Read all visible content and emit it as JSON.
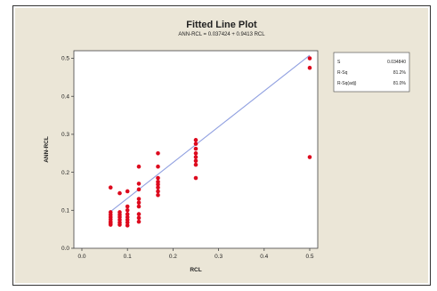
{
  "chart_data": {
    "type": "scatter",
    "title": "Fitted Line Plot",
    "subtitle": "ANN-RCL = 0.037424 + 0.9413 RCL",
    "xlabel": "RCL",
    "ylabel": "ANN-RCL",
    "xlim": [
      0.0,
      0.5
    ],
    "ylim": [
      0.0,
      0.52
    ],
    "xticks": [
      "0.0",
      "0.1",
      "0.2",
      "0.3",
      "0.4",
      "0.5"
    ],
    "yticks": [
      "0.0",
      "0.1",
      "0.2",
      "0.3",
      "0.4",
      "0.5"
    ],
    "fit": {
      "intercept": 0.037424,
      "slope": 0.9413
    },
    "grid": false,
    "legend_position": "top-right",
    "stats": [
      {
        "label": "S",
        "value": "0.034840"
      },
      {
        "label": "R-Sq",
        "value": "81.2%"
      },
      {
        "label": "R-Sq(adj)",
        "value": "81.0%"
      }
    ],
    "colors": {
      "points": "#dd0a1e",
      "fit_line": "#8f9fe0",
      "background": "#ebe6d7"
    },
    "points": [
      [
        0.063,
        0.16
      ],
      [
        0.063,
        0.095
      ],
      [
        0.063,
        0.088
      ],
      [
        0.063,
        0.082
      ],
      [
        0.063,
        0.076
      ],
      [
        0.063,
        0.07
      ],
      [
        0.063,
        0.066
      ],
      [
        0.063,
        0.062
      ],
      [
        0.083,
        0.145
      ],
      [
        0.083,
        0.095
      ],
      [
        0.083,
        0.088
      ],
      [
        0.083,
        0.082
      ],
      [
        0.083,
        0.075
      ],
      [
        0.083,
        0.068
      ],
      [
        0.083,
        0.062
      ],
      [
        0.1,
        0.15
      ],
      [
        0.1,
        0.11
      ],
      [
        0.1,
        0.1
      ],
      [
        0.1,
        0.09
      ],
      [
        0.1,
        0.082
      ],
      [
        0.1,
        0.075
      ],
      [
        0.1,
        0.068
      ],
      [
        0.1,
        0.06
      ],
      [
        0.125,
        0.215
      ],
      [
        0.125,
        0.17
      ],
      [
        0.125,
        0.155
      ],
      [
        0.125,
        0.13
      ],
      [
        0.125,
        0.12
      ],
      [
        0.125,
        0.11
      ],
      [
        0.125,
        0.09
      ],
      [
        0.125,
        0.08
      ],
      [
        0.125,
        0.07
      ],
      [
        0.167,
        0.25
      ],
      [
        0.167,
        0.215
      ],
      [
        0.167,
        0.185
      ],
      [
        0.167,
        0.175
      ],
      [
        0.167,
        0.168
      ],
      [
        0.167,
        0.16
      ],
      [
        0.167,
        0.15
      ],
      [
        0.167,
        0.14
      ],
      [
        0.25,
        0.285
      ],
      [
        0.25,
        0.275
      ],
      [
        0.25,
        0.262
      ],
      [
        0.25,
        0.25
      ],
      [
        0.25,
        0.24
      ],
      [
        0.25,
        0.23
      ],
      [
        0.25,
        0.22
      ],
      [
        0.25,
        0.185
      ],
      [
        0.5,
        0.5
      ],
      [
        0.5,
        0.475
      ],
      [
        0.5,
        0.24
      ]
    ]
  }
}
